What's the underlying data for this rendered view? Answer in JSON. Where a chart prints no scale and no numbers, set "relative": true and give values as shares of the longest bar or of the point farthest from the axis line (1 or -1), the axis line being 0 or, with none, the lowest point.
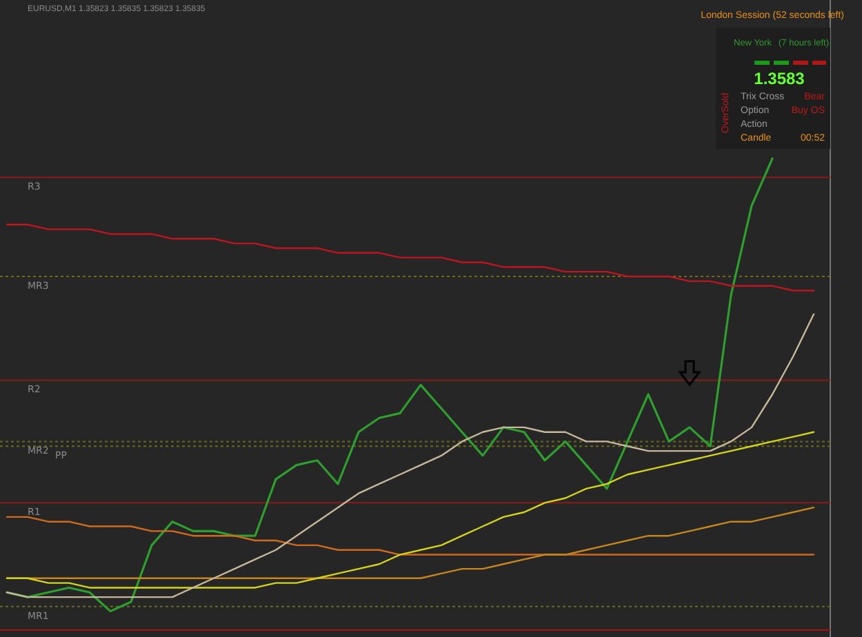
{
  "chart_data": {
    "type": "line",
    "relative": true,
    "title": "EURUSD,M1 1.35823 1.35835 1.35823 1.35835",
    "categories": [
      null,
      null,
      null,
      null,
      null,
      null,
      null,
      null,
      null,
      null,
      null,
      null,
      null,
      null,
      null,
      null,
      null,
      null,
      null,
      null,
      null,
      null,
      null,
      null,
      null,
      null,
      null,
      null,
      null,
      null,
      null,
      null,
      null,
      null,
      null,
      null,
      null,
      null,
      null,
      null
    ],
    "series": [
      {
        "color": "#2e9e2e",
        "values": [
          0.08,
          0.07,
          0.08,
          0.09,
          0.08,
          0.04,
          0.06,
          0.18,
          0.23,
          0.21,
          0.21,
          0.2,
          0.2,
          0.32,
          0.35,
          0.36,
          0.31,
          0.42,
          0.45,
          0.46,
          0.52,
          0.47,
          0.42,
          0.37,
          0.43,
          0.42,
          0.36,
          0.4,
          0.35,
          0.3,
          0.4,
          0.5,
          0.4,
          0.43,
          0.39,
          0.71,
          0.9,
          1.0,
          null,
          null
        ]
      },
      {
        "color": "#c0141e",
        "values": [
          0.86,
          0.86,
          0.85,
          0.85,
          0.85,
          0.84,
          0.84,
          0.84,
          0.83,
          0.83,
          0.83,
          0.82,
          0.82,
          0.81,
          0.81,
          0.81,
          0.8,
          0.8,
          0.8,
          0.79,
          0.79,
          0.79,
          0.78,
          0.78,
          0.77,
          0.77,
          0.77,
          0.76,
          0.76,
          0.76,
          0.75,
          0.75,
          0.75,
          0.74,
          0.74,
          0.73,
          0.73,
          0.73,
          0.72,
          0.72
        ]
      },
      {
        "color": "#d2691e",
        "values": [
          0.24,
          0.24,
          0.23,
          0.23,
          0.22,
          0.22,
          0.22,
          0.21,
          0.21,
          0.2,
          0.2,
          0.2,
          0.19,
          0.19,
          0.18,
          0.18,
          0.17,
          0.17,
          0.17,
          0.16,
          0.16,
          0.16,
          0.16,
          0.16,
          0.16,
          0.16,
          0.16,
          0.16,
          0.16,
          0.16,
          0.16,
          0.16,
          0.16,
          0.16,
          0.16,
          0.16,
          0.16,
          0.16,
          0.16,
          0.16
        ]
      },
      {
        "color": "#c8861e",
        "values": [
          0.11,
          0.11,
          0.11,
          0.11,
          0.11,
          0.11,
          0.11,
          0.11,
          0.11,
          0.11,
          0.11,
          0.11,
          0.11,
          0.11,
          0.11,
          0.11,
          0.11,
          0.11,
          0.11,
          0.11,
          0.11,
          0.12,
          0.13,
          0.13,
          0.14,
          0.15,
          0.16,
          0.16,
          0.17,
          0.18,
          0.19,
          0.2,
          0.2,
          0.21,
          0.22,
          0.23,
          0.23,
          0.24,
          0.25,
          0.26
        ]
      },
      {
        "color": "#d4d41e",
        "values": [
          0.11,
          0.11,
          0.1,
          0.1,
          0.09,
          0.09,
          0.09,
          0.09,
          0.09,
          0.09,
          0.09,
          0.09,
          0.09,
          0.1,
          0.1,
          0.11,
          0.12,
          0.13,
          0.14,
          0.16,
          0.17,
          0.18,
          0.2,
          0.22,
          0.24,
          0.25,
          0.27,
          0.28,
          0.3,
          0.31,
          0.33,
          0.34,
          0.35,
          0.36,
          0.37,
          0.38,
          0.39,
          0.4,
          0.41,
          0.42
        ]
      },
      {
        "color": "#c8b89a",
        "values": [
          0.08,
          0.07,
          0.07,
          0.07,
          0.07,
          0.07,
          0.07,
          0.07,
          0.07,
          0.09,
          0.11,
          0.13,
          0.15,
          0.17,
          0.2,
          0.23,
          0.26,
          0.29,
          0.31,
          0.33,
          0.35,
          0.37,
          0.4,
          0.42,
          0.43,
          0.43,
          0.42,
          0.42,
          0.4,
          0.4,
          0.39,
          0.38,
          0.38,
          0.38,
          0.38,
          0.4,
          0.43,
          0.5,
          0.58,
          0.67
        ]
      }
    ],
    "ref_lines": [
      {
        "axis": "y",
        "value": 0.96,
        "label": "R3",
        "color": "#8b1a1a",
        "line_style": "solid"
      },
      {
        "axis": "y",
        "value": 0.75,
        "label": "MR3",
        "color": "#6b6b1a",
        "line_style": "dotted"
      },
      {
        "axis": "y",
        "value": 0.53,
        "label": "R2",
        "color": "#8b1a1a",
        "line_style": "solid"
      },
      {
        "axis": "y",
        "value": 0.4,
        "label": "MR2",
        "color": "#6b6b1a",
        "line_style": "dotted"
      },
      {
        "axis": "y",
        "value": 0.39,
        "label": "PP",
        "color": "#6b6b1a",
        "line_style": "dotted"
      },
      {
        "axis": "y",
        "value": 0.27,
        "label": "R1",
        "color": "#8b1a1a",
        "line_style": "solid"
      },
      {
        "axis": "y",
        "value": 0.05,
        "label": "MR1",
        "color": "#6b6b1a",
        "line_style": "dotted"
      },
      {
        "axis": "y",
        "value": 0,
        "label": null,
        "color": "#b01010",
        "line_style": "solid"
      }
    ],
    "annotations": [
      "London Session (52 seconds left)",
      "New York",
      "(7 hours left)",
      "1.3583",
      "Trix Cross",
      "Bear",
      "Option",
      "Buy OS",
      "Action",
      "Candle",
      "00:52",
      "OverSold"
    ]
  }
}
